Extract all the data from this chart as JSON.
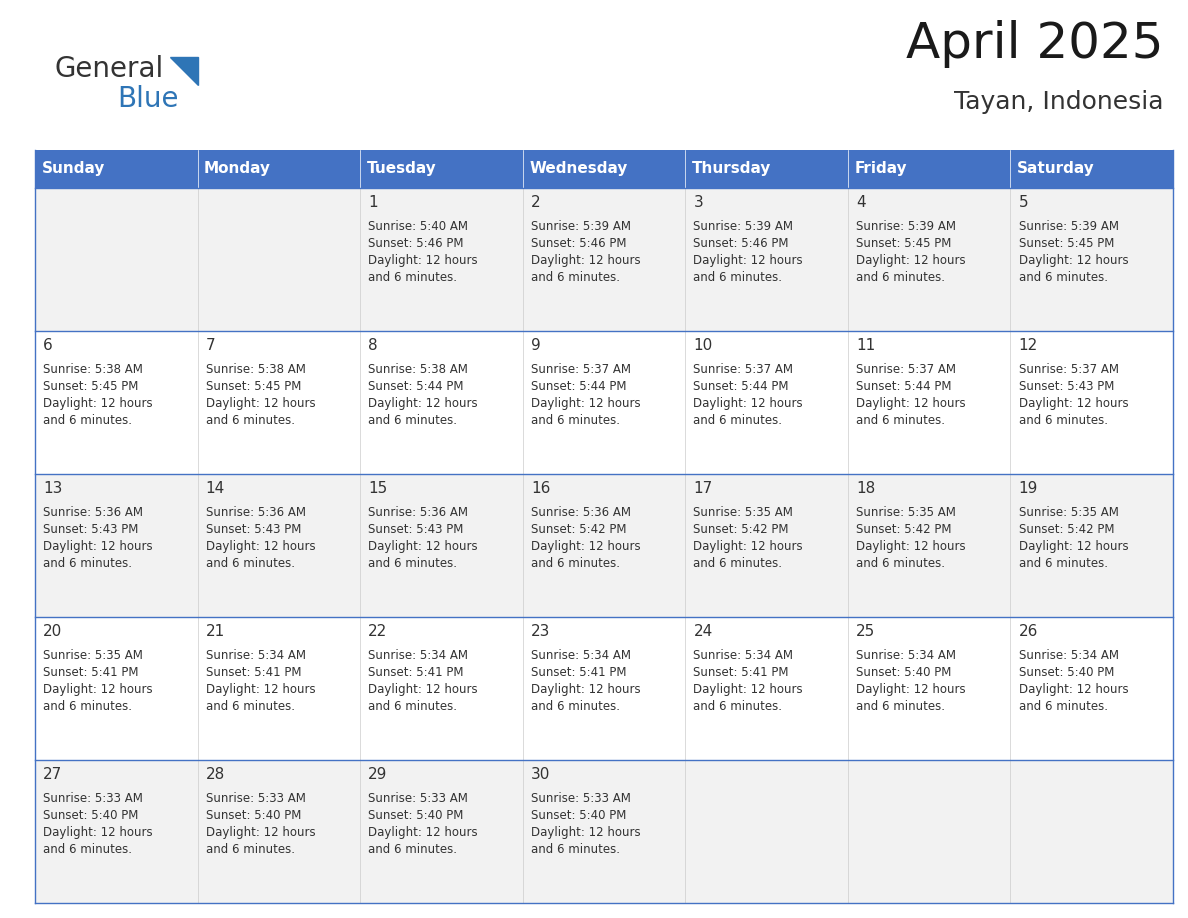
{
  "title": "April 2025",
  "subtitle": "Tayan, Indonesia",
  "logo_text1": "General",
  "logo_text2": "Blue",
  "header_color": "#4472C4",
  "header_text_color": "#FFFFFF",
  "cell_bg_color": "#FFFFFF",
  "alt_cell_bg_color": "#F2F2F2",
  "border_color": "#4472C4",
  "text_color": "#333333",
  "days_of_week": [
    "Sunday",
    "Monday",
    "Tuesday",
    "Wednesday",
    "Thursday",
    "Friday",
    "Saturday"
  ],
  "weeks": [
    [
      {
        "day": null,
        "info": null
      },
      {
        "day": null,
        "info": null
      },
      {
        "day": 1,
        "info": "Sunrise: 5:40 AM\nSunset: 5:46 PM\nDaylight: 12 hours\nand 6 minutes."
      },
      {
        "day": 2,
        "info": "Sunrise: 5:39 AM\nSunset: 5:46 PM\nDaylight: 12 hours\nand 6 minutes."
      },
      {
        "day": 3,
        "info": "Sunrise: 5:39 AM\nSunset: 5:46 PM\nDaylight: 12 hours\nand 6 minutes."
      },
      {
        "day": 4,
        "info": "Sunrise: 5:39 AM\nSunset: 5:45 PM\nDaylight: 12 hours\nand 6 minutes."
      },
      {
        "day": 5,
        "info": "Sunrise: 5:39 AM\nSunset: 5:45 PM\nDaylight: 12 hours\nand 6 minutes."
      }
    ],
    [
      {
        "day": 6,
        "info": "Sunrise: 5:38 AM\nSunset: 5:45 PM\nDaylight: 12 hours\nand 6 minutes."
      },
      {
        "day": 7,
        "info": "Sunrise: 5:38 AM\nSunset: 5:45 PM\nDaylight: 12 hours\nand 6 minutes."
      },
      {
        "day": 8,
        "info": "Sunrise: 5:38 AM\nSunset: 5:44 PM\nDaylight: 12 hours\nand 6 minutes."
      },
      {
        "day": 9,
        "info": "Sunrise: 5:37 AM\nSunset: 5:44 PM\nDaylight: 12 hours\nand 6 minutes."
      },
      {
        "day": 10,
        "info": "Sunrise: 5:37 AM\nSunset: 5:44 PM\nDaylight: 12 hours\nand 6 minutes."
      },
      {
        "day": 11,
        "info": "Sunrise: 5:37 AM\nSunset: 5:44 PM\nDaylight: 12 hours\nand 6 minutes."
      },
      {
        "day": 12,
        "info": "Sunrise: 5:37 AM\nSunset: 5:43 PM\nDaylight: 12 hours\nand 6 minutes."
      }
    ],
    [
      {
        "day": 13,
        "info": "Sunrise: 5:36 AM\nSunset: 5:43 PM\nDaylight: 12 hours\nand 6 minutes."
      },
      {
        "day": 14,
        "info": "Sunrise: 5:36 AM\nSunset: 5:43 PM\nDaylight: 12 hours\nand 6 minutes."
      },
      {
        "day": 15,
        "info": "Sunrise: 5:36 AM\nSunset: 5:43 PM\nDaylight: 12 hours\nand 6 minutes."
      },
      {
        "day": 16,
        "info": "Sunrise: 5:36 AM\nSunset: 5:42 PM\nDaylight: 12 hours\nand 6 minutes."
      },
      {
        "day": 17,
        "info": "Sunrise: 5:35 AM\nSunset: 5:42 PM\nDaylight: 12 hours\nand 6 minutes."
      },
      {
        "day": 18,
        "info": "Sunrise: 5:35 AM\nSunset: 5:42 PM\nDaylight: 12 hours\nand 6 minutes."
      },
      {
        "day": 19,
        "info": "Sunrise: 5:35 AM\nSunset: 5:42 PM\nDaylight: 12 hours\nand 6 minutes."
      }
    ],
    [
      {
        "day": 20,
        "info": "Sunrise: 5:35 AM\nSunset: 5:41 PM\nDaylight: 12 hours\nand 6 minutes."
      },
      {
        "day": 21,
        "info": "Sunrise: 5:34 AM\nSunset: 5:41 PM\nDaylight: 12 hours\nand 6 minutes."
      },
      {
        "day": 22,
        "info": "Sunrise: 5:34 AM\nSunset: 5:41 PM\nDaylight: 12 hours\nand 6 minutes."
      },
      {
        "day": 23,
        "info": "Sunrise: 5:34 AM\nSunset: 5:41 PM\nDaylight: 12 hours\nand 6 minutes."
      },
      {
        "day": 24,
        "info": "Sunrise: 5:34 AM\nSunset: 5:41 PM\nDaylight: 12 hours\nand 6 minutes."
      },
      {
        "day": 25,
        "info": "Sunrise: 5:34 AM\nSunset: 5:40 PM\nDaylight: 12 hours\nand 6 minutes."
      },
      {
        "day": 26,
        "info": "Sunrise: 5:34 AM\nSunset: 5:40 PM\nDaylight: 12 hours\nand 6 minutes."
      }
    ],
    [
      {
        "day": 27,
        "info": "Sunrise: 5:33 AM\nSunset: 5:40 PM\nDaylight: 12 hours\nand 6 minutes."
      },
      {
        "day": 28,
        "info": "Sunrise: 5:33 AM\nSunset: 5:40 PM\nDaylight: 12 hours\nand 6 minutes."
      },
      {
        "day": 29,
        "info": "Sunrise: 5:33 AM\nSunset: 5:40 PM\nDaylight: 12 hours\nand 6 minutes."
      },
      {
        "day": 30,
        "info": "Sunrise: 5:33 AM\nSunset: 5:40 PM\nDaylight: 12 hours\nand 6 minutes."
      },
      {
        "day": null,
        "info": null
      },
      {
        "day": null,
        "info": null
      },
      {
        "day": null,
        "info": null
      }
    ]
  ],
  "fig_width": 11.88,
  "fig_height": 9.18,
  "dpi": 100,
  "background_color": "#FFFFFF",
  "title_fontsize": 36,
  "subtitle_fontsize": 18,
  "header_fontsize": 11,
  "day_num_fontsize": 11,
  "info_fontsize": 8.5,
  "logo_general_color": "#333333",
  "logo_blue_color": "#2E75B6",
  "logo_triangle_color": "#2E75B6"
}
